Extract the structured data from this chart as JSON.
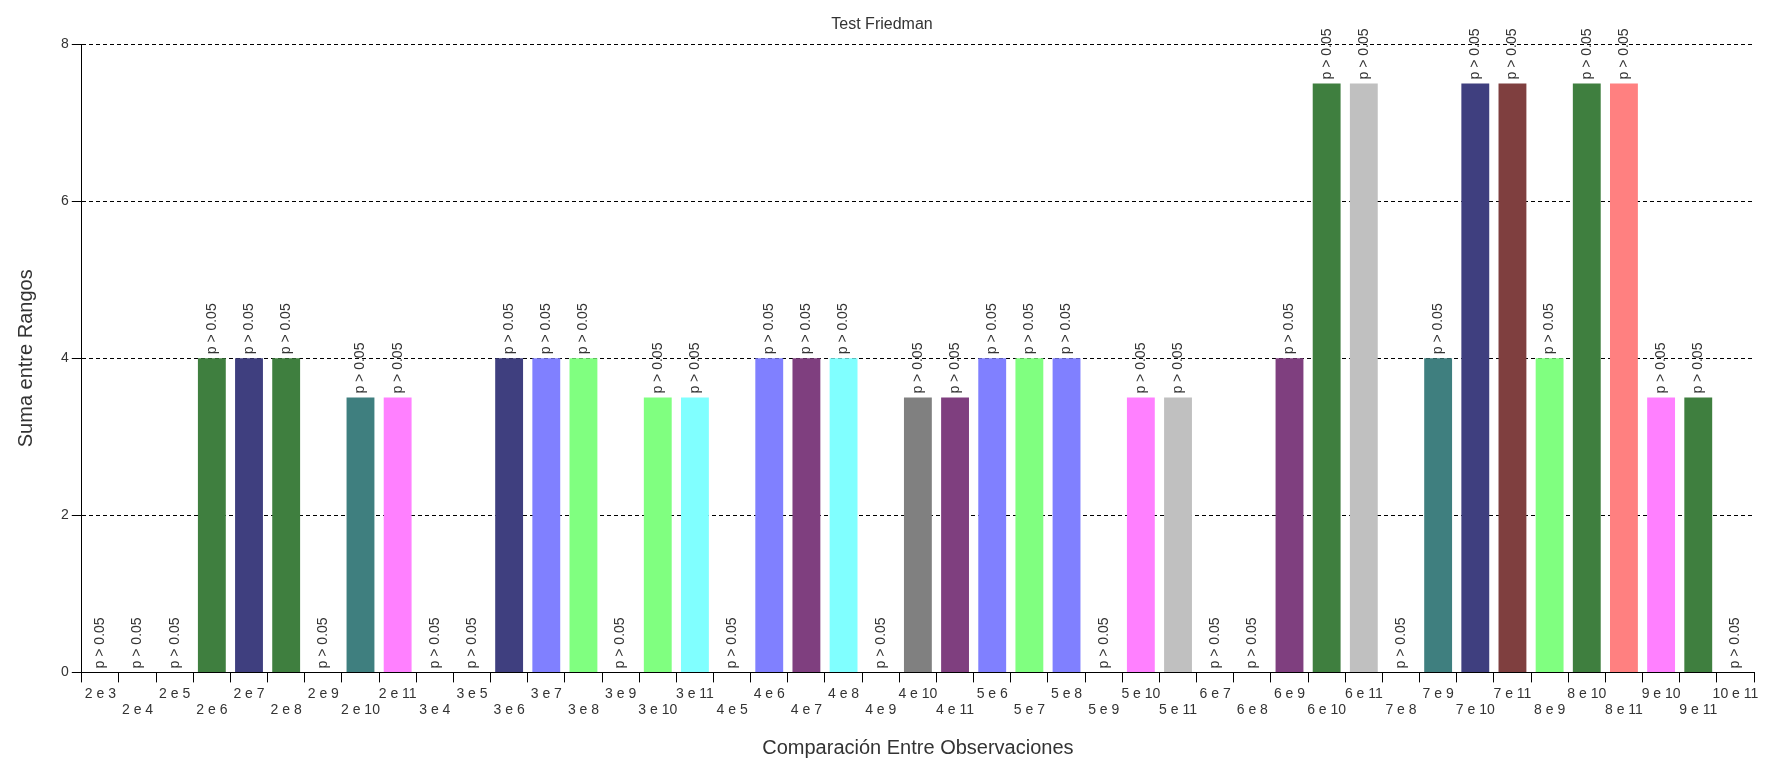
{
  "chart_data": {
    "type": "bar",
    "title": "Test Friedman",
    "xlabel": "Comparación Entre Observaciones",
    "ylabel": "Suma entre Rangos",
    "categories": [
      "2 e 3",
      "2 e 4",
      "2 e 5",
      "2 e 6",
      "2 e 7",
      "2 e 8",
      "2 e 9",
      "2 e 10",
      "2 e 11",
      "3 e 4",
      "3 e 5",
      "3 e 6",
      "3 e 7",
      "3 e 8",
      "3 e 9",
      "3 e 10",
      "3 e 11",
      "4 e 5",
      "4 e 6",
      "4 e 7",
      "4 e 8",
      "4 e 9",
      "4 e 10",
      "4 e 11",
      "5 e 6",
      "5 e 7",
      "5 e 8",
      "5 e 9",
      "5 e 10",
      "5 e 11",
      "6 e 7",
      "6 e 8",
      "6 e 9",
      "6 e 10",
      "6 e 11",
      "7 e 8",
      "7 e 9",
      "7 e 10",
      "7 e 11",
      "8 e 9",
      "8 e 10",
      "8 e 11",
      "9 e 10",
      "9 e 11",
      "10 e 11"
    ],
    "values": [
      0,
      0,
      0,
      4,
      4,
      4,
      0,
      3.5,
      3.5,
      0,
      0,
      4,
      4,
      4,
      0,
      3.5,
      3.5,
      0,
      4,
      4,
      4,
      0,
      3.5,
      3.5,
      4,
      4,
      4,
      0,
      3.5,
      3.5,
      0,
      0,
      4,
      7.5,
      7.5,
      0,
      4,
      7.5,
      7.5,
      4,
      7.5,
      7.5,
      3.5,
      3.5,
      0
    ],
    "colors": [
      "#3f7f3f",
      "#3f3f7f",
      "#3f7f3f",
      "#3f7f3f",
      "#3f3f7f",
      "#3f7f3f",
      "#3f7f7f",
      "#3f7f7f",
      "#ff80ff",
      "#3f3f7f",
      "#3f3f7f",
      "#3f3f7f",
      "#8080ff",
      "#80ff80",
      "#80ff80",
      "#80ff80",
      "#80ffff",
      "#8080ff",
      "#8080ff",
      "#7f3f7f",
      "#80ffff",
      "#808080",
      "#808080",
      "#7f3f7f",
      "#8080ff",
      "#80ff80",
      "#8080ff",
      "#ff80ff",
      "#ff80ff",
      "#c0c0c0",
      "#7f3f7f",
      "#7f3f7f",
      "#7f3f7f",
      "#3f7f3f",
      "#c0c0c0",
      "#3f7f7f",
      "#3f7f7f",
      "#3f3f7f",
      "#7f3f3f",
      "#80ff80",
      "#3f7f3f",
      "#ff8080",
      "#ff80ff",
      "#3f7f3f",
      "#3f7f3f"
    ],
    "value_labels": [
      "p > 0.05",
      "p > 0.05",
      "p > 0.05",
      "p > 0.05",
      "p > 0.05",
      "p > 0.05",
      "p > 0.05",
      "p > 0.05",
      "p > 0.05",
      "p > 0.05",
      "p > 0.05",
      "p > 0.05",
      "p > 0.05",
      "p > 0.05",
      "p > 0.05",
      "p > 0.05",
      "p > 0.05",
      "p > 0.05",
      "p > 0.05",
      "p > 0.05",
      "p > 0.05",
      "p > 0.05",
      "p > 0.05",
      "p > 0.05",
      "p > 0.05",
      "p > 0.05",
      "p > 0.05",
      "p > 0.05",
      "p > 0.05",
      "p > 0.05",
      "p > 0.05",
      "p > 0.05",
      "p > 0.05",
      "p > 0.05",
      "p > 0.05",
      "p > 0.05",
      "p > 0.05",
      "p > 0.05",
      "p > 0.05",
      "p > 0.05",
      "p > 0.05",
      "p > 0.05",
      "p > 0.05",
      "p > 0.05",
      "p > 0.05"
    ],
    "ylim": [
      0,
      8
    ],
    "yticks": [
      0,
      2,
      4,
      6,
      8
    ],
    "grid": "y",
    "legend": false
  }
}
